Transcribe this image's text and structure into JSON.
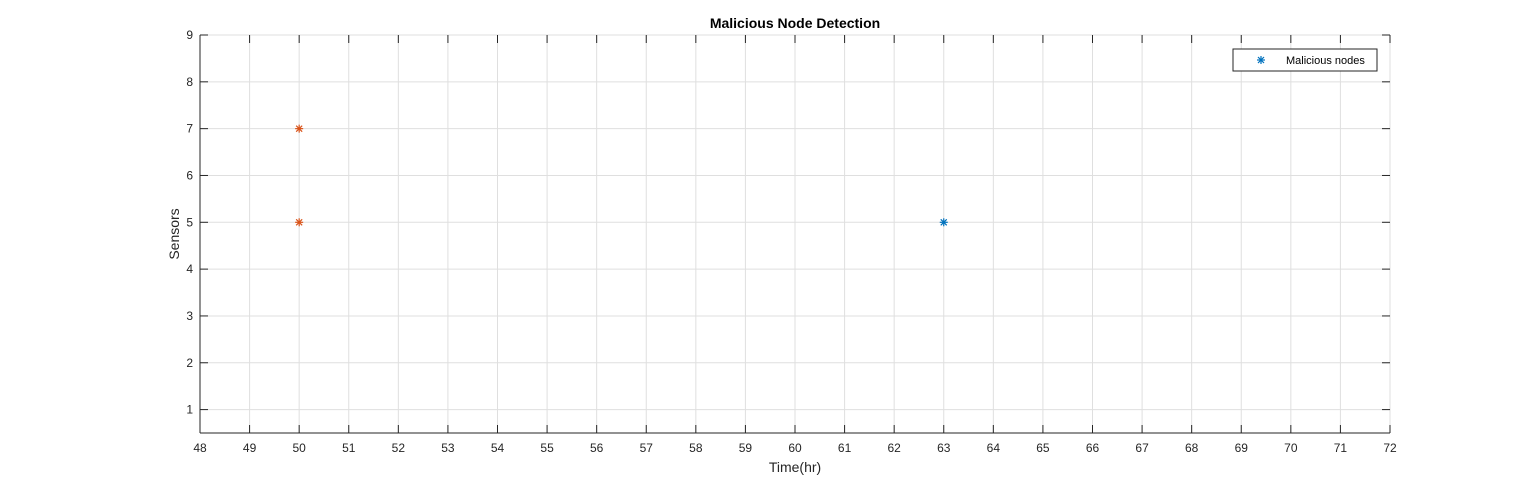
{
  "chart_data": {
    "type": "scatter",
    "title": "Malicious Node Detection",
    "xlabel": "Time(hr)",
    "ylabel": "Sensors",
    "xlim": [
      48,
      72
    ],
    "ylim": [
      0.5,
      9
    ],
    "xticks": [
      48,
      49,
      50,
      51,
      52,
      53,
      54,
      55,
      56,
      57,
      58,
      59,
      60,
      61,
      62,
      63,
      64,
      65,
      66,
      67,
      68,
      69,
      70,
      71,
      72
    ],
    "yticks": [
      1,
      2,
      3,
      4,
      5,
      6,
      7,
      8,
      9
    ],
    "grid": true,
    "legend_position": "top-right",
    "series": [
      {
        "name": "Malicious nodes",
        "marker": "asterisk",
        "color": "#0072BD",
        "points": [
          [
            63,
            5
          ]
        ]
      },
      {
        "marker": "asterisk",
        "color": "#D95319",
        "points": [
          [
            50,
            5
          ],
          [
            50,
            7
          ]
        ]
      }
    ]
  }
}
